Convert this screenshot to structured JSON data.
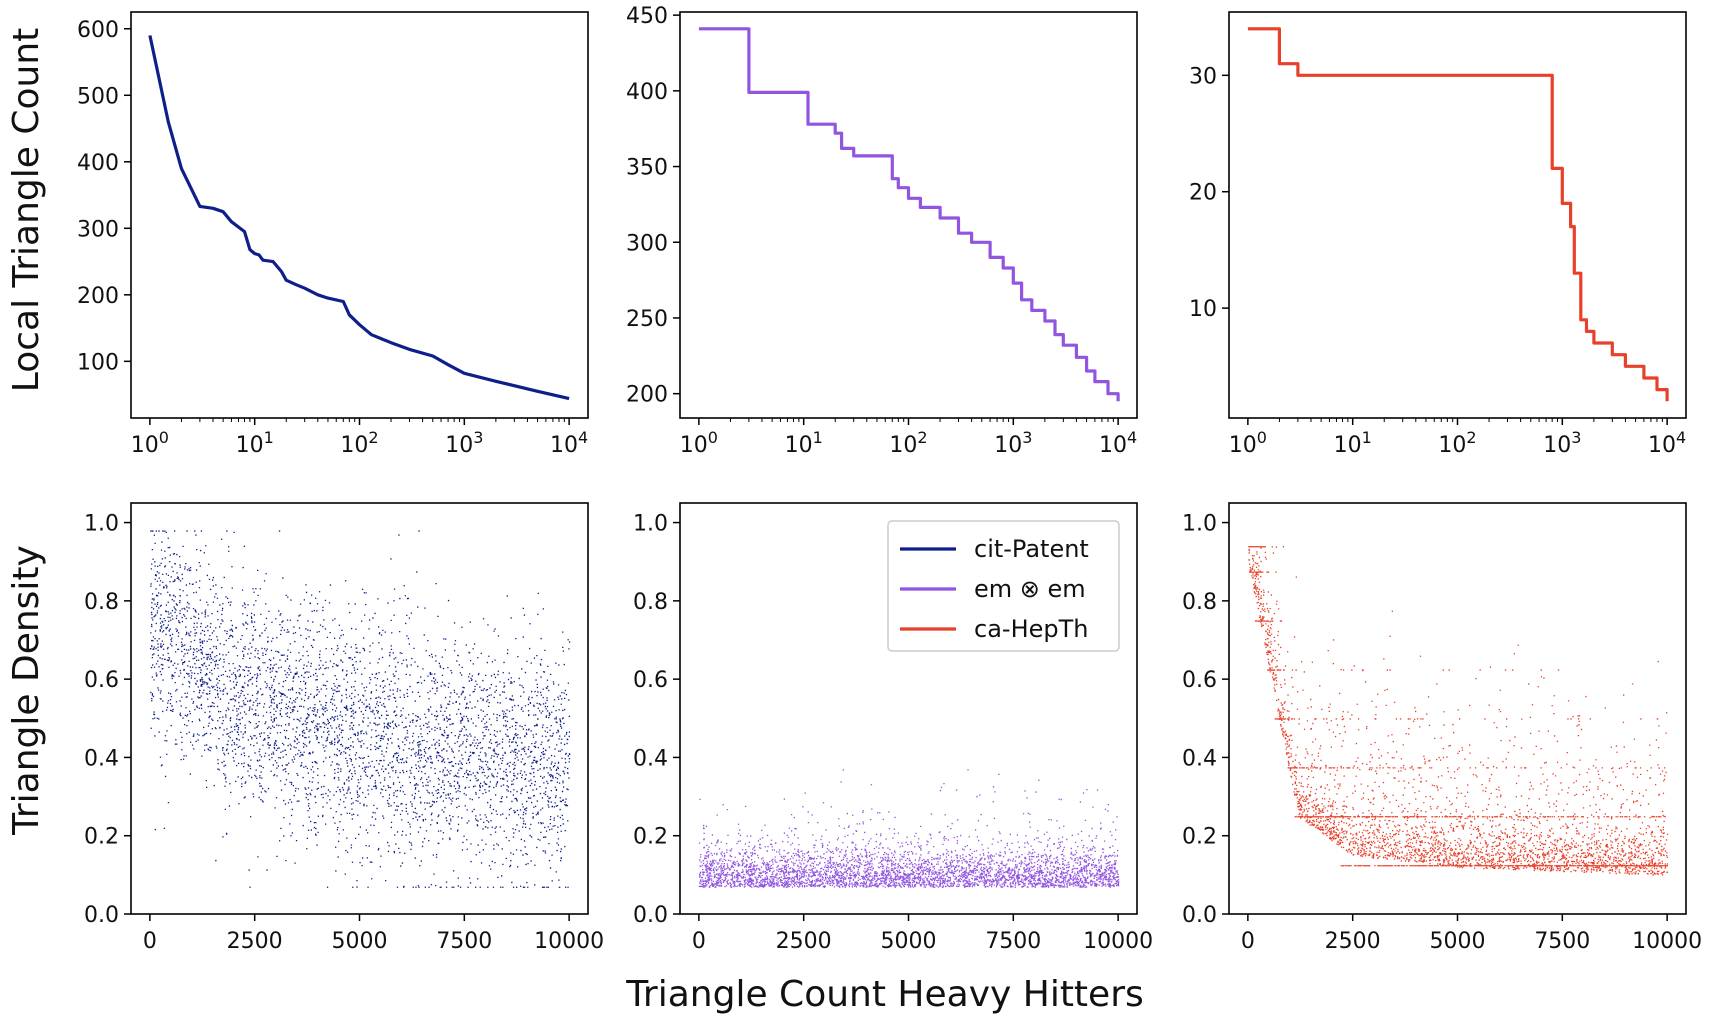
{
  "figure": {
    "xlabel_bottom": "Triangle Count Heavy Hitters",
    "ylabel_top": "Local Triangle Count",
    "ylabel_bottom": "Triangle Density"
  },
  "legend": {
    "placement": "upper right of bottom-middle panel",
    "entries": [
      {
        "label": "cit-Patent",
        "color": "#0f1f8a"
      },
      {
        "label": "em ⊗ em",
        "color": "#9155e0"
      },
      {
        "label": "ca-HepTh",
        "color": "#e8402a"
      }
    ]
  },
  "chart_data": [
    {
      "panel": "top-left",
      "type": "line",
      "series_name": "cit-Patent",
      "color": "#0f1f8a",
      "xscale": "log",
      "xlim": [
        1,
        10000
      ],
      "ylim": [
        40,
        600
      ],
      "xticks": [
        1,
        10,
        100,
        1000,
        10000
      ],
      "xtick_labels": [
        "10^0",
        "10^1",
        "10^2",
        "10^3",
        "10^4"
      ],
      "yticks": [
        100,
        200,
        300,
        400,
        500,
        600
      ],
      "ytick_labels": [
        "100",
        "200",
        "300",
        "400",
        "500",
        "600"
      ],
      "x": [
        1,
        1.5,
        2,
        3,
        4,
        5,
        6,
        8,
        9,
        10,
        11,
        12,
        15,
        18,
        20,
        25,
        30,
        40,
        50,
        70,
        80,
        100,
        130,
        200,
        300,
        500,
        700,
        1000,
        2000,
        5000,
        10000
      ],
      "y": [
        590,
        460,
        390,
        333,
        330,
        325,
        310,
        295,
        268,
        262,
        260,
        252,
        250,
        235,
        222,
        215,
        210,
        200,
        195,
        190,
        170,
        155,
        140,
        128,
        118,
        108,
        95,
        82,
        70,
        55,
        44
      ]
    },
    {
      "panel": "top-middle",
      "type": "line",
      "series_name": "em ⊗ em",
      "color": "#9155e0",
      "step": true,
      "xscale": "log",
      "xlim": [
        1,
        10000
      ],
      "ylim": [
        195,
        441
      ],
      "xticks": [
        1,
        10,
        100,
        1000,
        10000
      ],
      "xtick_labels": [
        "10^0",
        "10^1",
        "10^2",
        "10^3",
        "10^4"
      ],
      "yticks": [
        200,
        250,
        300,
        350,
        400,
        450
      ],
      "ytick_labels": [
        "200",
        "250",
        "300",
        "350",
        "400",
        "450"
      ],
      "x": [
        1,
        2,
        3,
        10,
        11,
        20,
        23,
        30,
        70,
        80,
        100,
        130,
        200,
        300,
        400,
        600,
        800,
        1000,
        1200,
        1500,
        2000,
        2500,
        3000,
        4000,
        5000,
        6000,
        8000,
        10000
      ],
      "y": [
        441,
        441,
        399,
        399,
        378,
        372,
        362,
        357,
        342,
        336,
        329,
        323,
        316,
        306,
        300,
        290,
        283,
        273,
        262,
        255,
        248,
        239,
        232,
        224,
        215,
        208,
        200,
        195
      ]
    },
    {
      "panel": "top-right",
      "type": "line",
      "series_name": "ca-HepTh",
      "color": "#e8402a",
      "step": true,
      "xscale": "log",
      "xlim": [
        1,
        10000
      ],
      "ylim": [
        2,
        34
      ],
      "xticks": [
        1,
        10,
        100,
        1000,
        10000
      ],
      "xtick_labels": [
        "10^0",
        "10^1",
        "10^2",
        "10^3",
        "10^4"
      ],
      "yticks": [
        10,
        20,
        30
      ],
      "ytick_labels": [
        "10",
        "20",
        "30"
      ],
      "x": [
        1,
        2,
        3,
        500,
        800,
        1000,
        1200,
        1300,
        1500,
        1700,
        2000,
        3000,
        4000,
        6000,
        8000,
        10000
      ],
      "y": [
        34,
        31,
        30,
        30,
        22,
        19,
        17,
        13,
        9,
        8,
        7,
        6,
        5,
        4,
        3,
        2
      ]
    },
    {
      "panel": "bottom-left",
      "type": "scatter",
      "series_name": "cit-Patent",
      "color": "#0f1f8a",
      "xlim": [
        0,
        10000
      ],
      "ylim": [
        0,
        1
      ],
      "xticks": [
        0,
        2500,
        5000,
        7500,
        10000
      ],
      "xtick_labels": [
        "0",
        "2500",
        "5000",
        "7500",
        "10000"
      ],
      "yticks": [
        0,
        0.2,
        0.4,
        0.6,
        0.8,
        1.0
      ],
      "ytick_labels": [
        "0.0",
        "0.2",
        "0.4",
        "0.6",
        "0.8",
        "1.0"
      ],
      "n_points": 10000,
      "trend_x": [
        0,
        2500,
        5000,
        7500,
        10000
      ],
      "trend_y": [
        0.75,
        0.52,
        0.45,
        0.41,
        0.38
      ],
      "y_range": [
        0.07,
        0.98
      ]
    },
    {
      "panel": "bottom-middle",
      "type": "scatter",
      "series_name": "em ⊗ em",
      "color": "#9155e0",
      "xlim": [
        0,
        10000
      ],
      "ylim": [
        0,
        1
      ],
      "xticks": [
        0,
        2500,
        5000,
        7500,
        10000
      ],
      "xtick_labels": [
        "0",
        "2500",
        "5000",
        "7500",
        "10000"
      ],
      "yticks": [
        0,
        0.2,
        0.4,
        0.6,
        0.8,
        1.0
      ],
      "ytick_labels": [
        "0.0",
        "0.2",
        "0.4",
        "0.6",
        "0.8",
        "1.0"
      ],
      "n_points": 10000,
      "trend_x": [
        0,
        2500,
        5000,
        7500,
        10000
      ],
      "trend_y": [
        0.1,
        0.1,
        0.1,
        0.1,
        0.1
      ],
      "y_range": [
        0.03,
        0.37
      ]
    },
    {
      "panel": "bottom-right",
      "type": "scatter",
      "series_name": "ca-HepTh",
      "color": "#e8402a",
      "xlim": [
        0,
        10000
      ],
      "ylim": [
        0,
        1
      ],
      "xticks": [
        0,
        2500,
        5000,
        7500,
        10000
      ],
      "xtick_labels": [
        "0",
        "2500",
        "5000",
        "7500",
        "10000"
      ],
      "yticks": [
        0,
        0.2,
        0.4,
        0.6,
        0.8,
        1.0
      ],
      "ytick_labels": [
        "0.0",
        "0.2",
        "0.4",
        "0.6",
        "0.8",
        "1.0"
      ],
      "n_points": 10000,
      "trend_x": [
        0,
        1200,
        2500,
        5000,
        10000
      ],
      "trend_y": [
        0.9,
        0.25,
        0.15,
        0.12,
        0.1
      ],
      "y_range": [
        0.03,
        0.94
      ]
    }
  ]
}
